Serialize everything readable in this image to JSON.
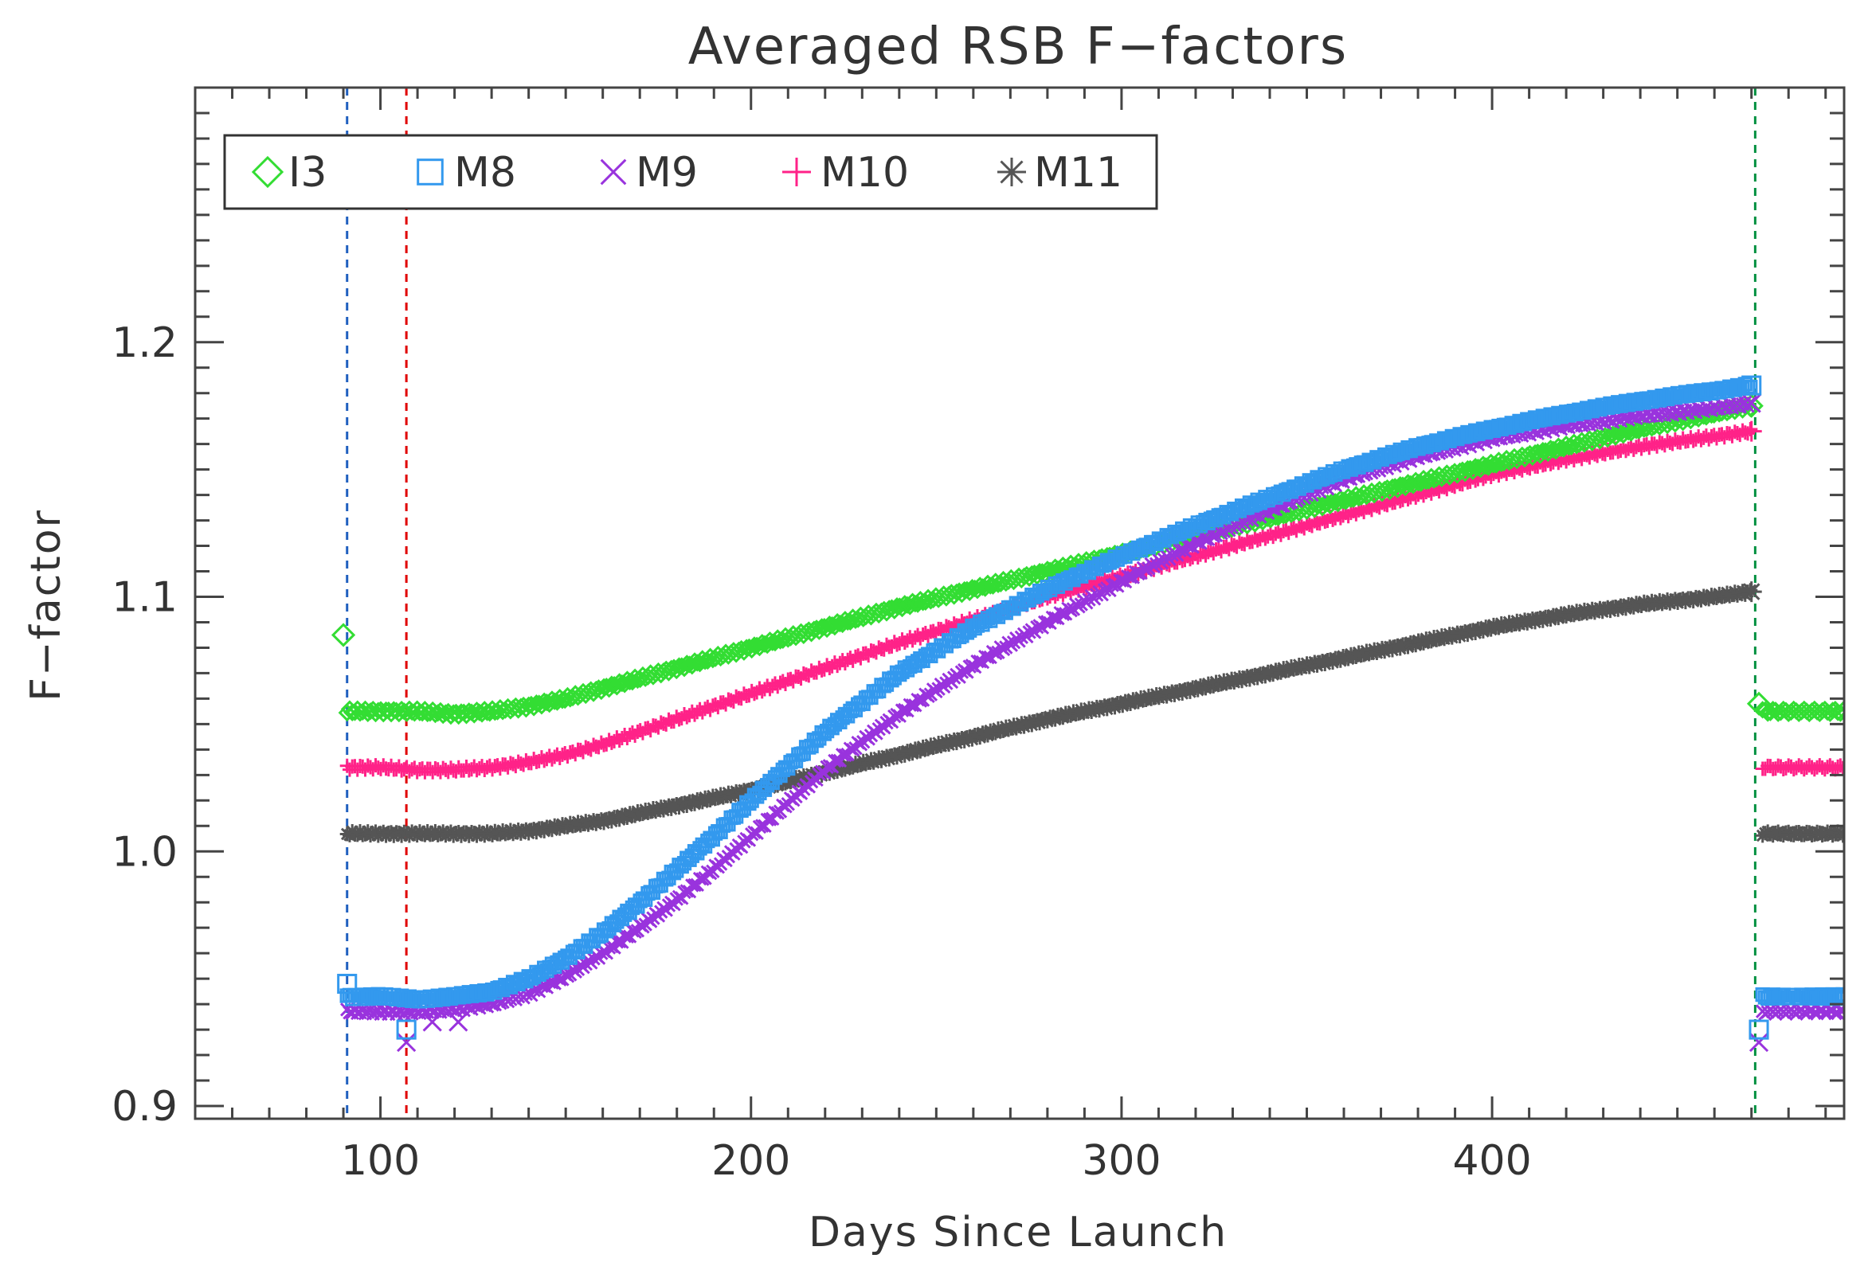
{
  "chart_data": {
    "type": "scatter",
    "title": "Averaged RSB F−factors",
    "xlabel": "Days Since Launch",
    "ylabel": "F−factor",
    "xlim": [
      50,
      495
    ],
    "ylim": [
      0.895,
      1.3
    ],
    "x_ticks": [
      100,
      200,
      300,
      400
    ],
    "x_tick_labels": [
      "100",
      "200",
      "300",
      "400"
    ],
    "y_ticks": [
      0.9,
      1.0,
      1.1,
      1.2
    ],
    "y_tick_labels": [
      "0.9",
      "1.0",
      "1.1",
      "1.2"
    ],
    "legend_position": "top-left",
    "vertical_lines": [
      {
        "x": 91,
        "color": "#1f5fbf",
        "style": "dashed"
      },
      {
        "x": 107,
        "color": "#e00000",
        "style": "dashed"
      },
      {
        "x": 471,
        "color": "#009040",
        "style": "dashed"
      }
    ],
    "series": [
      {
        "name": "I3",
        "marker": "diamond",
        "color": "#33dd33",
        "x": [
          91,
          100,
          110,
          120,
          130,
          140,
          150,
          160,
          170,
          180,
          190,
          200,
          220,
          240,
          260,
          280,
          300,
          320,
          340,
          360,
          380,
          400,
          420,
          440,
          460,
          470,
          473,
          480,
          490,
          495
        ],
        "y": [
          1.055,
          1.055,
          1.055,
          1.054,
          1.055,
          1.057,
          1.06,
          1.064,
          1.068,
          1.072,
          1.076,
          1.08,
          1.088,
          1.096,
          1.103,
          1.11,
          1.117,
          1.124,
          1.131,
          1.138,
          1.145,
          1.152,
          1.159,
          1.166,
          1.172,
          1.175,
          1.055,
          1.055,
          1.055,
          1.055
        ],
        "outliers_x": [
          90,
          472
        ],
        "outliers_y": [
          1.085,
          1.058
        ]
      },
      {
        "name": "M8",
        "marker": "square",
        "color": "#3399ee",
        "x": [
          91,
          100,
          110,
          120,
          130,
          140,
          150,
          160,
          170,
          180,
          190,
          200,
          220,
          240,
          260,
          280,
          300,
          320,
          340,
          360,
          380,
          400,
          420,
          440,
          460,
          470,
          473,
          480,
          490,
          495
        ],
        "y": [
          0.943,
          0.943,
          0.942,
          0.943,
          0.945,
          0.95,
          0.958,
          0.968,
          0.98,
          0.993,
          1.006,
          1.02,
          1.047,
          1.07,
          1.088,
          1.103,
          1.116,
          1.128,
          1.139,
          1.15,
          1.159,
          1.166,
          1.172,
          1.177,
          1.181,
          1.183,
          0.943,
          0.943,
          0.943,
          0.943
        ],
        "outliers_x": [
          91,
          107,
          472
        ],
        "outliers_y": [
          0.948,
          0.93,
          0.93
        ]
      },
      {
        "name": "M9",
        "marker": "x",
        "color": "#9933dd",
        "x": [
          91,
          100,
          110,
          120,
          130,
          140,
          150,
          160,
          170,
          180,
          190,
          200,
          220,
          240,
          260,
          280,
          300,
          320,
          340,
          360,
          380,
          400,
          420,
          440,
          460,
          470,
          473,
          480,
          490,
          495
        ],
        "y": [
          0.937,
          0.937,
          0.937,
          0.938,
          0.94,
          0.944,
          0.951,
          0.96,
          0.97,
          0.981,
          0.993,
          1.006,
          1.032,
          1.054,
          1.073,
          1.09,
          1.106,
          1.121,
          1.134,
          1.146,
          1.155,
          1.162,
          1.167,
          1.171,
          1.174,
          1.176,
          0.937,
          0.937,
          0.937,
          0.937
        ],
        "outliers_x": [
          107,
          114,
          121,
          472
        ],
        "outliers_y": [
          0.925,
          0.933,
          0.933,
          0.925
        ]
      },
      {
        "name": "M10",
        "marker": "plus",
        "color": "#ff2288",
        "x": [
          91,
          100,
          110,
          120,
          130,
          140,
          150,
          160,
          170,
          180,
          190,
          200,
          220,
          240,
          260,
          280,
          300,
          320,
          340,
          360,
          380,
          400,
          420,
          440,
          460,
          470,
          473,
          480,
          490,
          495
        ],
        "y": [
          1.033,
          1.033,
          1.032,
          1.032,
          1.033,
          1.035,
          1.038,
          1.042,
          1.047,
          1.052,
          1.057,
          1.062,
          1.072,
          1.082,
          1.091,
          1.1,
          1.108,
          1.116,
          1.124,
          1.132,
          1.14,
          1.148,
          1.154,
          1.159,
          1.163,
          1.165,
          1.033,
          1.033,
          1.033,
          1.033
        ],
        "outliers_x": [],
        "outliers_y": []
      },
      {
        "name": "M11",
        "marker": "asterisk",
        "color": "#555555",
        "x": [
          91,
          100,
          110,
          120,
          130,
          140,
          150,
          160,
          170,
          180,
          190,
          200,
          220,
          240,
          260,
          280,
          300,
          320,
          340,
          360,
          380,
          400,
          420,
          440,
          460,
          470,
          473,
          480,
          490,
          495
        ],
        "y": [
          1.007,
          1.007,
          1.007,
          1.007,
          1.007,
          1.008,
          1.01,
          1.012,
          1.015,
          1.018,
          1.021,
          1.024,
          1.031,
          1.038,
          1.045,
          1.052,
          1.058,
          1.064,
          1.07,
          1.076,
          1.082,
          1.088,
          1.093,
          1.097,
          1.1,
          1.102,
          1.007,
          1.007,
          1.007,
          1.007
        ],
        "outliers_x": [],
        "outliers_y": []
      }
    ]
  }
}
